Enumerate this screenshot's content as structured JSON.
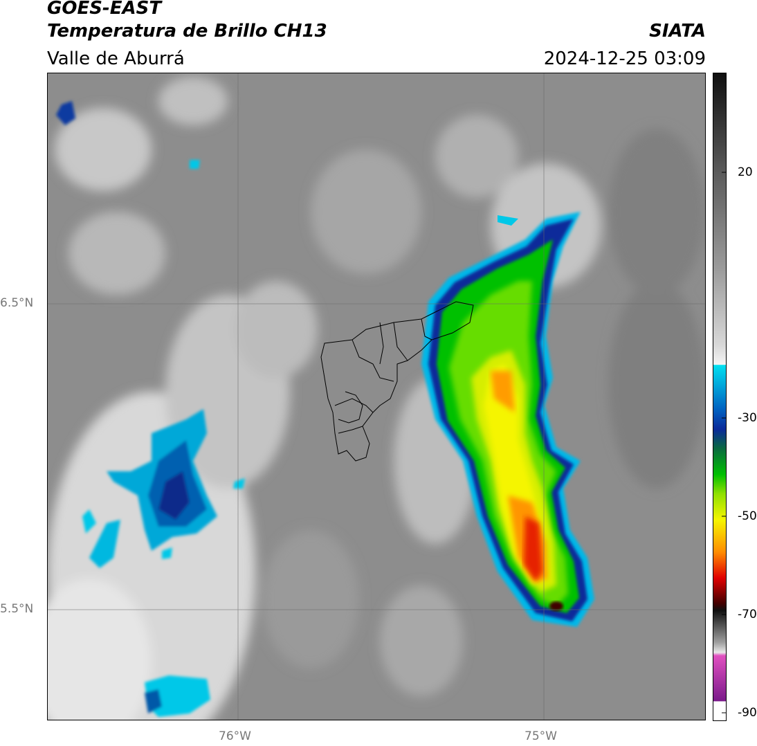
{
  "header": {
    "satellite": "GOES-EAST",
    "product": "Temperatura de Brillo CH13",
    "region": "Valle de Aburrá",
    "agency": "SIATA",
    "datetime": "2024-12-25 03:09"
  },
  "map": {
    "lon_ticks": [
      "76°W",
      "75°W"
    ],
    "lat_ticks": [
      "6.5°N",
      "5.5°N"
    ]
  },
  "colorbar": {
    "ticks": [
      "20",
      "-30",
      "-50",
      "-70",
      "-90"
    ],
    "colors": {
      "warm_dark": "#101010",
      "warm_gray": "#8a8a8a",
      "cool_white": "#f2f2f2",
      "cyan": "#00e0f0",
      "blue": "#0a2a9a",
      "green": "#00c000",
      "yellow": "#f5f500",
      "orange": "#ff8c00",
      "red": "#e00000",
      "magenta": "#e050c0",
      "purple": "#7a1a8a"
    }
  }
}
